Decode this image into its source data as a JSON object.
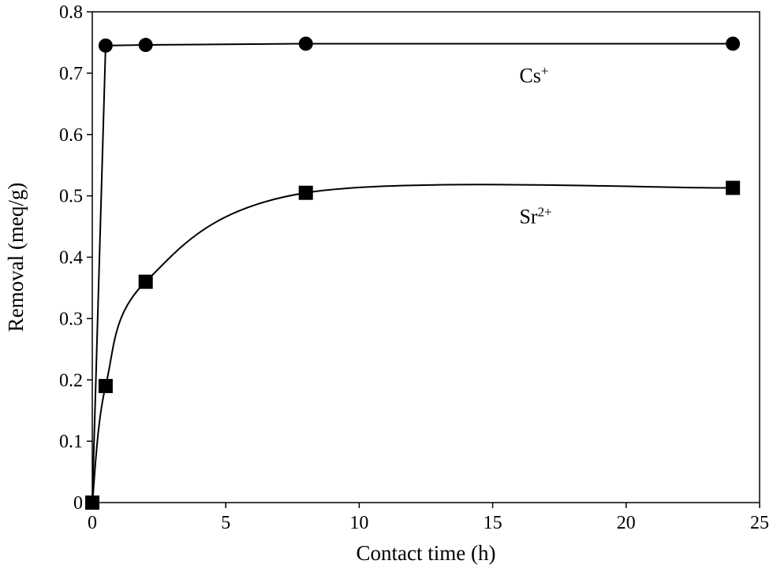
{
  "chart_data": {
    "type": "scatter",
    "xlabel": "Contact time (h)",
    "ylabel": "Removal (meq/g)",
    "xlim": [
      0,
      25
    ],
    "ylim": [
      0,
      0.8
    ],
    "x_ticks": [
      0,
      5,
      10,
      15,
      20,
      25
    ],
    "y_ticks": [
      0,
      0.1,
      0.2,
      0.3,
      0.4,
      0.5,
      0.6,
      0.7,
      0.8
    ],
    "grid": false,
    "legend": "none",
    "series": [
      {
        "name": "Cs+",
        "marker": "circle",
        "connector": "straight",
        "x": [
          0,
          0.5,
          2,
          8,
          24
        ],
        "y": [
          0,
          0.745,
          0.746,
          0.748,
          0.748
        ]
      },
      {
        "name": "Sr2+",
        "marker": "square",
        "connector": "smooth",
        "x": [
          0,
          0.5,
          2,
          8,
          24
        ],
        "y": [
          0,
          0.19,
          0.36,
          0.505,
          0.513
        ]
      }
    ],
    "annotations": [
      {
        "base": "Cs",
        "sup": "+",
        "series": "Cs+"
      },
      {
        "base": "Sr",
        "sup": "2+",
        "series": "Sr2+"
      }
    ]
  }
}
